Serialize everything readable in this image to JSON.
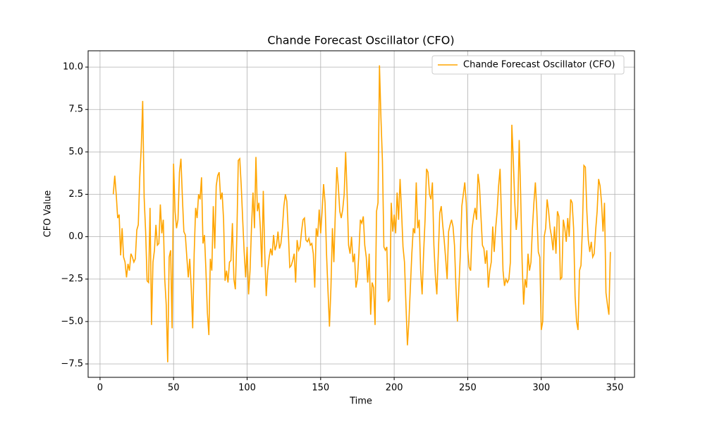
{
  "chart_data": {
    "type": "line",
    "title": "Chande Forecast Oscillator (CFO)",
    "x_label": "Time",
    "y_label": "CFO Value",
    "x": [
      9,
      10,
      11,
      12,
      13,
      14,
      15,
      16,
      17,
      18,
      19,
      20,
      21,
      22,
      23,
      24,
      25,
      26,
      27,
      28,
      29,
      30,
      31,
      32,
      33,
      34,
      35,
      36,
      37,
      38,
      39,
      40,
      41,
      42,
      43,
      44,
      45,
      46,
      47,
      48,
      49,
      50,
      51,
      52,
      53,
      54,
      55,
      56,
      57,
      58,
      59,
      60,
      61,
      62,
      63,
      64,
      65,
      66,
      67,
      68,
      69,
      70,
      71,
      72,
      73,
      74,
      75,
      76,
      77,
      78,
      79,
      80,
      81,
      82,
      83,
      84,
      85,
      86,
      87,
      88,
      89,
      90,
      91,
      92,
      93,
      94,
      95,
      96,
      97,
      98,
      99,
      100,
      101,
      102,
      103,
      104,
      105,
      106,
      107,
      108,
      109,
      110,
      111,
      112,
      113,
      114,
      115,
      116,
      117,
      118,
      119,
      120,
      121,
      122,
      123,
      124,
      125,
      126,
      127,
      128,
      129,
      130,
      131,
      132,
      133,
      134,
      135,
      136,
      137,
      138,
      139,
      140,
      141,
      142,
      143,
      144,
      145,
      146,
      147,
      148,
      149,
      150,
      151,
      152,
      153,
      154,
      155,
      156,
      157,
      158,
      159,
      160,
      161,
      162,
      163,
      164,
      165,
      166,
      167,
      168,
      169,
      170,
      171,
      172,
      173,
      174,
      175,
      176,
      177,
      178,
      179,
      180,
      181,
      182,
      183,
      184,
      185,
      186,
      187,
      188,
      189,
      190,
      191,
      192,
      193,
      194,
      195,
      196,
      197,
      198,
      199,
      200,
      201,
      202,
      203,
      204,
      205,
      206,
      207,
      208,
      209,
      210,
      211,
      212,
      213,
      214,
      215,
      216,
      217,
      218,
      219,
      220,
      221,
      222,
      223,
      224,
      225,
      226,
      227,
      228,
      229,
      230,
      231,
      232,
      233,
      234,
      235,
      236,
      237,
      238,
      239,
      240,
      241,
      242,
      243,
      244,
      245,
      246,
      247,
      248,
      249,
      250,
      251,
      252,
      253,
      254,
      255,
      256,
      257,
      258,
      259,
      260,
      261,
      262,
      263,
      264,
      265,
      266,
      267,
      268,
      269,
      270,
      271,
      272,
      273,
      274,
      275,
      276,
      277,
      278,
      279,
      280,
      281,
      282,
      283,
      284,
      285,
      286,
      287,
      288,
      289,
      290,
      291,
      292,
      293,
      294,
      295,
      296,
      297,
      298,
      299,
      300,
      301,
      302,
      303,
      304,
      305,
      306,
      307,
      308,
      309,
      310,
      311,
      312,
      313,
      314,
      315,
      316,
      317,
      318,
      319,
      320,
      321,
      322,
      323,
      324,
      325,
      326,
      327,
      328,
      329,
      330,
      331,
      332,
      333,
      334,
      335,
      336,
      337,
      338,
      339,
      340,
      341,
      342,
      343,
      344,
      345,
      346,
      347
    ],
    "series": [
      {
        "name": "Chande Forecast Oscillator (CFO)",
        "color": "#ffa500",
        "values": [
          2.5,
          3.6,
          2.5,
          1.1,
          1.3,
          -1.1,
          0.5,
          -1.2,
          -1.5,
          -2.4,
          -1.6,
          -2.0,
          -1.0,
          -1.2,
          -1.5,
          -1.3,
          0.4,
          0.7,
          3.5,
          5.2,
          8.0,
          2.3,
          0.3,
          -2.6,
          -2.7,
          1.7,
          -5.2,
          -1.5,
          -0.8,
          0.7,
          -0.5,
          -0.4,
          1.9,
          0.2,
          1.0,
          -2.5,
          -4.0,
          -7.4,
          -1.2,
          -0.8,
          -5.4,
          4.3,
          1.5,
          0.5,
          1.0,
          3.8,
          4.6,
          2.3,
          0.3,
          0.1,
          -1.2,
          -2.4,
          -1.3,
          -3.0,
          -5.4,
          -1.0,
          1.7,
          1.1,
          2.5,
          2.2,
          3.5,
          -0.4,
          0.1,
          -2.0,
          -4.5,
          -5.8,
          -1.3,
          -2.0,
          1.8,
          -0.7,
          3.0,
          3.6,
          3.8,
          2.2,
          2.6,
          1.0,
          -2.6,
          -2.0,
          -2.7,
          -1.5,
          -1.4,
          0.8,
          -2.5,
          -3.1,
          0.0,
          4.5,
          4.6,
          3.0,
          1.0,
          -0.9,
          -2.4,
          -0.6,
          -3.4,
          -2.0,
          0.6,
          2.6,
          0.5,
          4.7,
          1.5,
          2.0,
          0.5,
          -1.8,
          2.7,
          -1.0,
          -3.5,
          -2.0,
          -1.2,
          -0.7,
          -1.1,
          0.1,
          -0.8,
          -0.5,
          0.3,
          -0.7,
          -0.4,
          0.5,
          1.8,
          2.5,
          2.1,
          0.3,
          -1.8,
          -1.7,
          -1.4,
          -1.0,
          -2.7,
          -0.2,
          -0.8,
          -0.6,
          0.3,
          1.0,
          1.1,
          -0.2,
          -0.3,
          -0.1,
          -0.5,
          -0.4,
          -1.0,
          -3.0,
          0.5,
          0.0,
          1.6,
          0.2,
          1.5,
          3.1,
          2.0,
          -1.0,
          -3.2,
          -5.3,
          -3.0,
          0.5,
          -1.5,
          1.5,
          4.1,
          3.0,
          1.5,
          1.1,
          1.6,
          2.5,
          5.0,
          2.5,
          -0.5,
          -1.0,
          0.0,
          -1.5,
          -1.0,
          -3.0,
          -2.5,
          -1.0,
          1.0,
          0.8,
          1.2,
          -0.5,
          -1.2,
          -2.7,
          -1.0,
          -4.6,
          -2.7,
          -3.0,
          -5.2,
          1.5,
          2.0,
          10.1,
          7.0,
          4.5,
          -0.6,
          -0.8,
          -0.6,
          -3.8,
          -3.7,
          2.0,
          0.3,
          1.3,
          0.2,
          2.6,
          1.0,
          3.4,
          1.5,
          -0.6,
          -1.5,
          -4.0,
          -6.4,
          -5.0,
          -3.0,
          -1.0,
          0.5,
          0.2,
          3.2,
          0.5,
          1.0,
          -2.0,
          -3.4,
          -1.0,
          1.0,
          4.0,
          3.8,
          2.5,
          2.2,
          3.2,
          -0.5,
          -2.3,
          -3.4,
          -1.0,
          1.4,
          1.8,
          0.7,
          -0.2,
          -1.3,
          -2.5,
          0.3,
          0.7,
          1.0,
          0.6,
          -0.5,
          -3.0,
          -5.0,
          -3.0,
          -1.0,
          1.8,
          2.5,
          3.2,
          2.0,
          -0.8,
          -1.8,
          -2.0,
          0.5,
          1.2,
          1.7,
          1.0,
          3.7,
          3.0,
          1.2,
          -0.5,
          -0.7,
          -1.6,
          -0.8,
          -3.0,
          -2.0,
          -1.5,
          0.6,
          -0.9,
          0.5,
          1.5,
          3.0,
          4.0,
          1.0,
          -2.0,
          -2.9,
          -2.5,
          -2.7,
          -2.5,
          -1.5,
          6.6,
          4.5,
          2.0,
          0.4,
          1.5,
          5.7,
          2.5,
          -1.5,
          -4.0,
          -2.5,
          -3.0,
          -1.0,
          -2.0,
          -1.5,
          0.5,
          2.0,
          3.2,
          1.5,
          -0.9,
          -1.2,
          -5.5,
          -5.0,
          0.0,
          0.5,
          2.2,
          1.5,
          0.5,
          0.0,
          -0.8,
          0.6,
          -1.0,
          1.5,
          1.2,
          -2.5,
          -2.4,
          1.0,
          0.5,
          -0.3,
          1.1,
          0.0,
          2.2,
          2.0,
          0.5,
          -3.5,
          -5.0,
          -5.5,
          -2.0,
          -1.7,
          0.5,
          4.2,
          4.1,
          1.5,
          -0.2,
          -0.9,
          -0.3,
          -1.2,
          -1.0,
          0.4,
          1.5,
          3.4,
          3.0,
          2.0,
          0.3,
          2.0,
          -3.3,
          -4.0,
          -4.6,
          -0.9
        ]
      }
    ],
    "xlim": [
      -8.1,
      363.4
    ],
    "ylim": [
      -8.29,
      10.96
    ],
    "xticks": [
      0,
      50,
      100,
      150,
      200,
      250,
      300,
      350
    ],
    "yticks": [
      {
        "value": -7.5,
        "label": "−7.5"
      },
      {
        "value": -5,
        "label": "−5.0"
      },
      {
        "value": -2.5,
        "label": "−2.5"
      },
      {
        "value": 0,
        "label": "0.0"
      },
      {
        "value": 2.5,
        "label": "2.5"
      },
      {
        "value": 5,
        "label": "5.0"
      },
      {
        "value": 7.5,
        "label": "7.5"
      },
      {
        "value": 10,
        "label": "10.0"
      }
    ],
    "grid": true,
    "legend": "upper-right"
  }
}
